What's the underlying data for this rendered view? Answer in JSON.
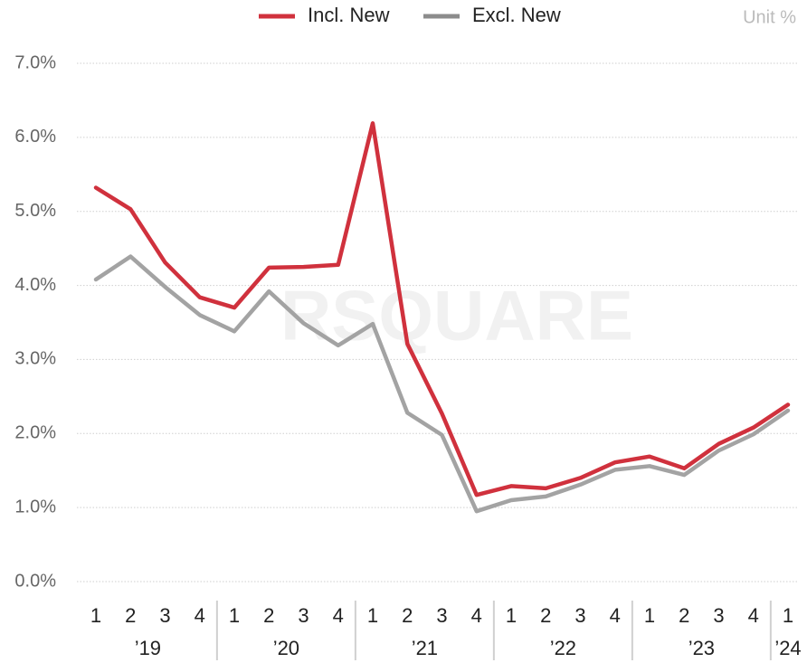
{
  "chart_data": {
    "type": "line",
    "watermark": "RSQUARE",
    "unit_label": "Unit %",
    "categories": [
      "1",
      "2",
      "3",
      "4",
      "1",
      "2",
      "3",
      "4",
      "1",
      "2",
      "3",
      "4",
      "1",
      "2",
      "3",
      "4",
      "1",
      "2",
      "3",
      "4",
      "1"
    ],
    "category_groups": [
      {
        "label": "’19",
        "size": 4
      },
      {
        "label": "’20",
        "size": 4
      },
      {
        "label": "’21",
        "size": 4
      },
      {
        "label": "’22",
        "size": 4
      },
      {
        "label": "’23",
        "size": 4
      },
      {
        "label": "’24",
        "size": 1
      }
    ],
    "series": [
      {
        "name": "Incl. New",
        "color": "#d0313d",
        "values": [
          5.32,
          5.03,
          4.31,
          3.84,
          3.7,
          4.24,
          4.25,
          4.28,
          6.19,
          3.21,
          2.27,
          1.17,
          1.29,
          1.26,
          1.4,
          1.61,
          1.69,
          1.53,
          1.86,
          2.08,
          2.39
        ]
      },
      {
        "name": "Excl. New",
        "color": "#a3a3a3",
        "values": [
          4.08,
          4.39,
          3.98,
          3.6,
          3.38,
          3.92,
          3.49,
          3.19,
          3.48,
          2.28,
          1.98,
          0.95,
          1.1,
          1.15,
          1.31,
          1.51,
          1.56,
          1.44,
          1.77,
          1.99,
          2.31
        ]
      }
    ],
    "ylim": [
      0,
      7
    ],
    "yticks": [
      {
        "value": 0,
        "label": "0.0%"
      },
      {
        "value": 1,
        "label": "1.0%"
      },
      {
        "value": 2,
        "label": "2.0%"
      },
      {
        "value": 3,
        "label": "3.0%"
      },
      {
        "value": 4,
        "label": "4.0%"
      },
      {
        "value": 5,
        "label": "5.0%"
      },
      {
        "value": 6,
        "label": "6.0%"
      },
      {
        "value": 7,
        "label": "7.0%"
      }
    ],
    "grid": true,
    "legend": "top"
  }
}
